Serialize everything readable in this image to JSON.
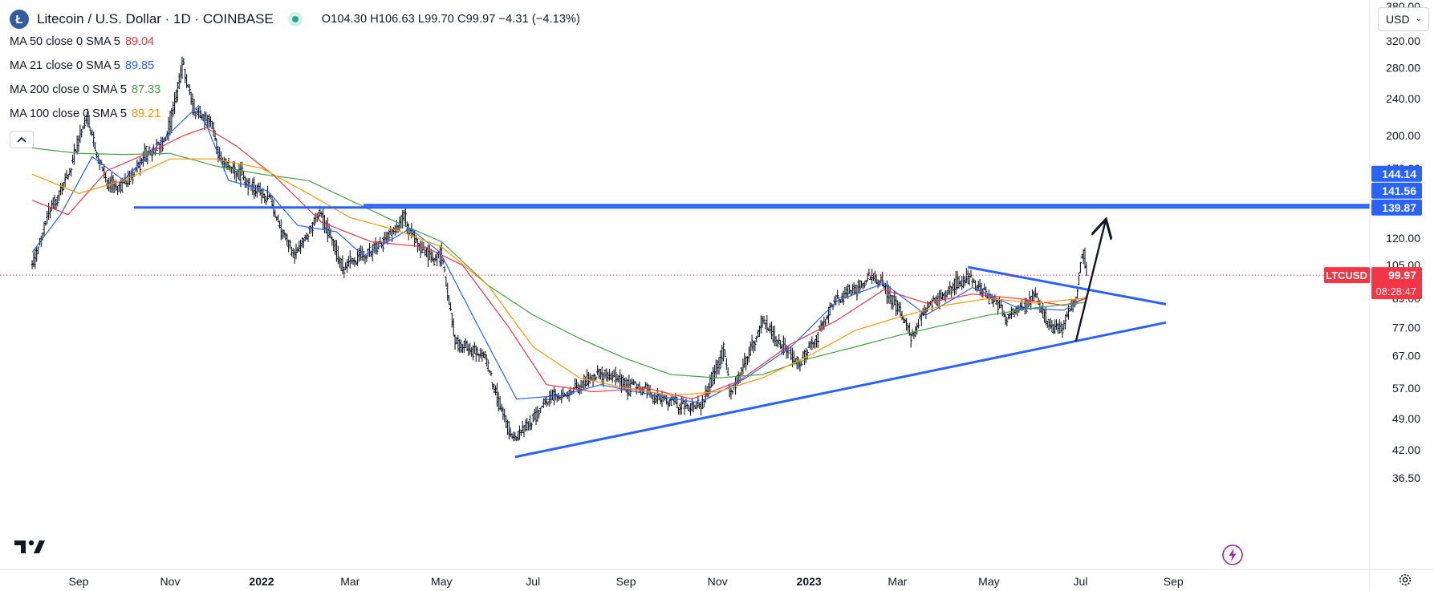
{
  "header": {
    "coin_icon_letter": "Ł",
    "title": "Litecoin / U.S. Dollar · 1D · COINBASE",
    "ohlc": {
      "o_label": "O",
      "o": "104.30",
      "h_label": "H",
      "h": "106.63",
      "l_label": "L",
      "l": "99.70",
      "c_label": "C",
      "c": "99.97",
      "change": "−4.31 (−4.13%)"
    }
  },
  "indicators": [
    {
      "label": "MA 50 close 0 SMA 5",
      "value": "89.04",
      "color": "#f23645"
    },
    {
      "label": "MA 21 close 0 SMA 5",
      "value": "89.85",
      "color": "#2962ff"
    },
    {
      "label": "MA 200 close 0 SMA 5",
      "value": "87.33",
      "color": "#43a047"
    },
    {
      "label": "MA 100 close 0 SMA 5",
      "value": "89.21",
      "color": "#ff9800"
    }
  ],
  "currency": {
    "label": "USD"
  },
  "icons": {
    "logo": "tradingview-logo-icon",
    "collapse": "chevron-up-icon",
    "alert": "flash-icon",
    "settings": "gear-icon",
    "coin": "litecoin-icon",
    "status": "market-status-icon"
  },
  "chart_data": {
    "type": "ohlc-bar",
    "symbol": "LTCUSD",
    "scale": "log",
    "ylim": [
      33,
      380
    ],
    "y_ticks": [
      "36.50",
      "42.00",
      "49.00",
      "57.00",
      "67.00",
      "77.00",
      "89.00",
      "105.00",
      "120.00",
      "170.00",
      "200.00",
      "240.00",
      "280.00",
      "320.00",
      "380.00"
    ],
    "x_ticks": [
      "Sep",
      "Nov",
      "2022",
      "Mar",
      "May",
      "Jul",
      "Sep",
      "Nov",
      "2023",
      "Mar",
      "May",
      "Jul",
      "Sep"
    ],
    "price_anchors": [
      [
        "2021-08-01",
        104
      ],
      [
        "2021-08-10",
        132
      ],
      [
        "2021-08-25",
        165
      ],
      [
        "2021-09-06",
        225
      ],
      [
        "2021-09-09",
        198
      ],
      [
        "2021-09-21",
        152
      ],
      [
        "2021-09-30",
        158
      ],
      [
        "2021-10-15",
        180
      ],
      [
        "2021-10-30",
        198
      ],
      [
        "2021-11-09",
        285
      ],
      [
        "2021-11-16",
        230
      ],
      [
        "2021-11-27",
        215
      ],
      [
        "2021-12-04",
        178
      ],
      [
        "2021-12-20",
        160
      ],
      [
        "2022-01-05",
        148
      ],
      [
        "2022-01-22",
        108
      ],
      [
        "2022-02-09",
        138
      ],
      [
        "2022-02-24",
        104
      ],
      [
        "2022-03-15",
        113
      ],
      [
        "2022-04-05",
        130
      ],
      [
        "2022-04-20",
        112
      ],
      [
        "2022-05-01",
        108
      ],
      [
        "2022-05-10",
        72
      ],
      [
        "2022-05-28",
        68
      ],
      [
        "2022-06-13",
        48
      ],
      [
        "2022-06-19",
        44
      ],
      [
        "2022-07-08",
        53
      ],
      [
        "2022-08-01",
        57
      ],
      [
        "2022-08-13",
        62
      ],
      [
        "2022-09-07",
        58
      ],
      [
        "2022-09-19",
        55
      ],
      [
        "2022-10-12",
        52
      ],
      [
        "2022-10-22",
        53
      ],
      [
        "2022-11-05",
        68
      ],
      [
        "2022-11-09",
        56
      ],
      [
        "2022-11-22",
        68
      ],
      [
        "2022-12-01",
        80
      ],
      [
        "2022-12-25",
        64
      ],
      [
        "2023-01-18",
        88
      ],
      [
        "2023-02-10",
        99
      ],
      [
        "2023-02-21",
        96
      ],
      [
        "2023-03-10",
        74
      ],
      [
        "2023-03-20",
        86
      ],
      [
        "2023-04-17",
        98
      ],
      [
        "2023-05-05",
        88
      ],
      [
        "2023-05-12",
        80
      ],
      [
        "2023-06-01",
        90
      ],
      [
        "2023-06-12",
        76
      ],
      [
        "2023-06-19",
        78
      ],
      [
        "2023-06-28",
        88
      ],
      [
        "2023-07-01",
        109
      ],
      [
        "2023-07-03",
        112
      ],
      [
        "2023-07-05",
        99.97
      ]
    ],
    "moving_averages": [
      {
        "name": "MA 50",
        "color": "#f23645",
        "anchors": [
          [
            "2021-08-01",
            145
          ],
          [
            "2021-08-25",
            135
          ],
          [
            "2021-09-20",
            168
          ],
          [
            "2021-10-20",
            185
          ],
          [
            "2021-11-10",
            200
          ],
          [
            "2021-11-25",
            208
          ],
          [
            "2021-12-15",
            190
          ],
          [
            "2022-01-10",
            163
          ],
          [
            "2022-02-10",
            130
          ],
          [
            "2022-03-15",
            118
          ],
          [
            "2022-04-20",
            115
          ],
          [
            "2022-05-15",
            105
          ],
          [
            "2022-06-15",
            77
          ],
          [
            "2022-07-10",
            58
          ],
          [
            "2022-08-10",
            56
          ],
          [
            "2022-09-15",
            57
          ],
          [
            "2022-10-15",
            54
          ],
          [
            "2022-11-15",
            59
          ],
          [
            "2022-12-20",
            71
          ],
          [
            "2023-01-20",
            80
          ],
          [
            "2023-02-20",
            93
          ],
          [
            "2023-03-20",
            87
          ],
          [
            "2023-04-20",
            91
          ],
          [
            "2023-05-20",
            89
          ],
          [
            "2023-06-20",
            86
          ],
          [
            "2023-07-05",
            89.04
          ]
        ]
      },
      {
        "name": "MA 21",
        "color": "#2962ff",
        "anchors": [
          [
            "2021-08-01",
            112
          ],
          [
            "2021-08-20",
            135
          ],
          [
            "2021-09-10",
            180
          ],
          [
            "2021-10-01",
            160
          ],
          [
            "2021-10-30",
            200
          ],
          [
            "2021-11-20",
            232
          ],
          [
            "2021-12-10",
            160
          ],
          [
            "2022-01-05",
            152
          ],
          [
            "2022-01-25",
            128
          ],
          [
            "2022-02-20",
            124
          ],
          [
            "2022-03-10",
            110
          ],
          [
            "2022-04-10",
            126
          ],
          [
            "2022-04-30",
            112
          ],
          [
            "2022-05-25",
            78
          ],
          [
            "2022-06-20",
            54
          ],
          [
            "2022-07-20",
            55
          ],
          [
            "2022-08-15",
            58
          ],
          [
            "2022-09-20",
            55
          ],
          [
            "2022-10-20",
            53
          ],
          [
            "2022-11-20",
            60
          ],
          [
            "2022-12-20",
            70
          ],
          [
            "2023-01-20",
            88
          ],
          [
            "2023-02-20",
            96
          ],
          [
            "2023-03-20",
            82
          ],
          [
            "2023-04-20",
            94
          ],
          [
            "2023-05-20",
            85
          ],
          [
            "2023-06-20",
            84
          ],
          [
            "2023-07-05",
            89.85
          ]
        ]
      },
      {
        "name": "MA 200",
        "color": "#43a047",
        "anchors": [
          [
            "2021-08-01",
            188
          ],
          [
            "2021-09-01",
            183
          ],
          [
            "2021-10-01",
            182
          ],
          [
            "2021-11-01",
            183
          ],
          [
            "2021-12-01",
            172
          ],
          [
            "2022-01-01",
            165
          ],
          [
            "2022-02-01",
            160
          ],
          [
            "2022-03-01",
            145
          ],
          [
            "2022-04-01",
            130
          ],
          [
            "2022-05-01",
            118
          ],
          [
            "2022-06-01",
            95
          ],
          [
            "2022-07-01",
            82
          ],
          [
            "2022-08-01",
            73
          ],
          [
            "2022-09-01",
            66
          ],
          [
            "2022-10-01",
            61
          ],
          [
            "2022-11-01",
            60
          ],
          [
            "2022-12-01",
            61
          ],
          [
            "2023-01-01",
            66
          ],
          [
            "2023-02-01",
            70
          ],
          [
            "2023-03-01",
            74
          ],
          [
            "2023-04-01",
            78
          ],
          [
            "2023-05-01",
            82
          ],
          [
            "2023-06-01",
            85
          ],
          [
            "2023-07-05",
            87.33
          ]
        ]
      },
      {
        "name": "MA 100",
        "color": "#ff9800",
        "anchors": [
          [
            "2021-08-01",
            165
          ],
          [
            "2021-09-01",
            150
          ],
          [
            "2021-10-01",
            160
          ],
          [
            "2021-11-01",
            178
          ],
          [
            "2021-12-01",
            178
          ],
          [
            "2022-01-01",
            170
          ],
          [
            "2022-02-01",
            150
          ],
          [
            "2022-03-01",
            133
          ],
          [
            "2022-04-01",
            125
          ],
          [
            "2022-05-01",
            115
          ],
          [
            "2022-06-01",
            95
          ],
          [
            "2022-07-01",
            70
          ],
          [
            "2022-08-01",
            60
          ],
          [
            "2022-09-01",
            57
          ],
          [
            "2022-10-01",
            55
          ],
          [
            "2022-11-01",
            56
          ],
          [
            "2022-12-01",
            60
          ],
          [
            "2023-01-01",
            67
          ],
          [
            "2023-02-01",
            76
          ],
          [
            "2023-03-01",
            81
          ],
          [
            "2023-04-01",
            86
          ],
          [
            "2023-05-01",
            89
          ],
          [
            "2023-06-01",
            87
          ],
          [
            "2023-07-05",
            89.21
          ]
        ]
      }
    ],
    "drawings": {
      "support_line": {
        "from": [
          "2022-06-19",
          40.5
        ],
        "to": [
          "2023-08-27",
          79
        ]
      },
      "resistance_line": {
        "from": [
          "2023-04-17",
          104
        ],
        "to": [
          "2023-08-27",
          86.5
        ]
      },
      "horizontal_levels": [
        141.56,
        139.87
      ],
      "arrow": {
        "from": [
          "2023-06-28",
          72
        ],
        "to": [
          "2023-07-18",
          132
        ]
      }
    },
    "price_labels": [
      {
        "text": "144.14",
        "value": 144.14,
        "bg": "#2962ff"
      },
      {
        "text": "141.56",
        "value": 141.56,
        "bg": "#2962ff"
      },
      {
        "text": "139.87",
        "value": 139.87,
        "bg": "#2962ff"
      }
    ],
    "last_price": {
      "symbol": "LTCUSD",
      "value": 99.97,
      "text": "99.97",
      "countdown": "08:28:47",
      "color": "#f23645"
    }
  }
}
